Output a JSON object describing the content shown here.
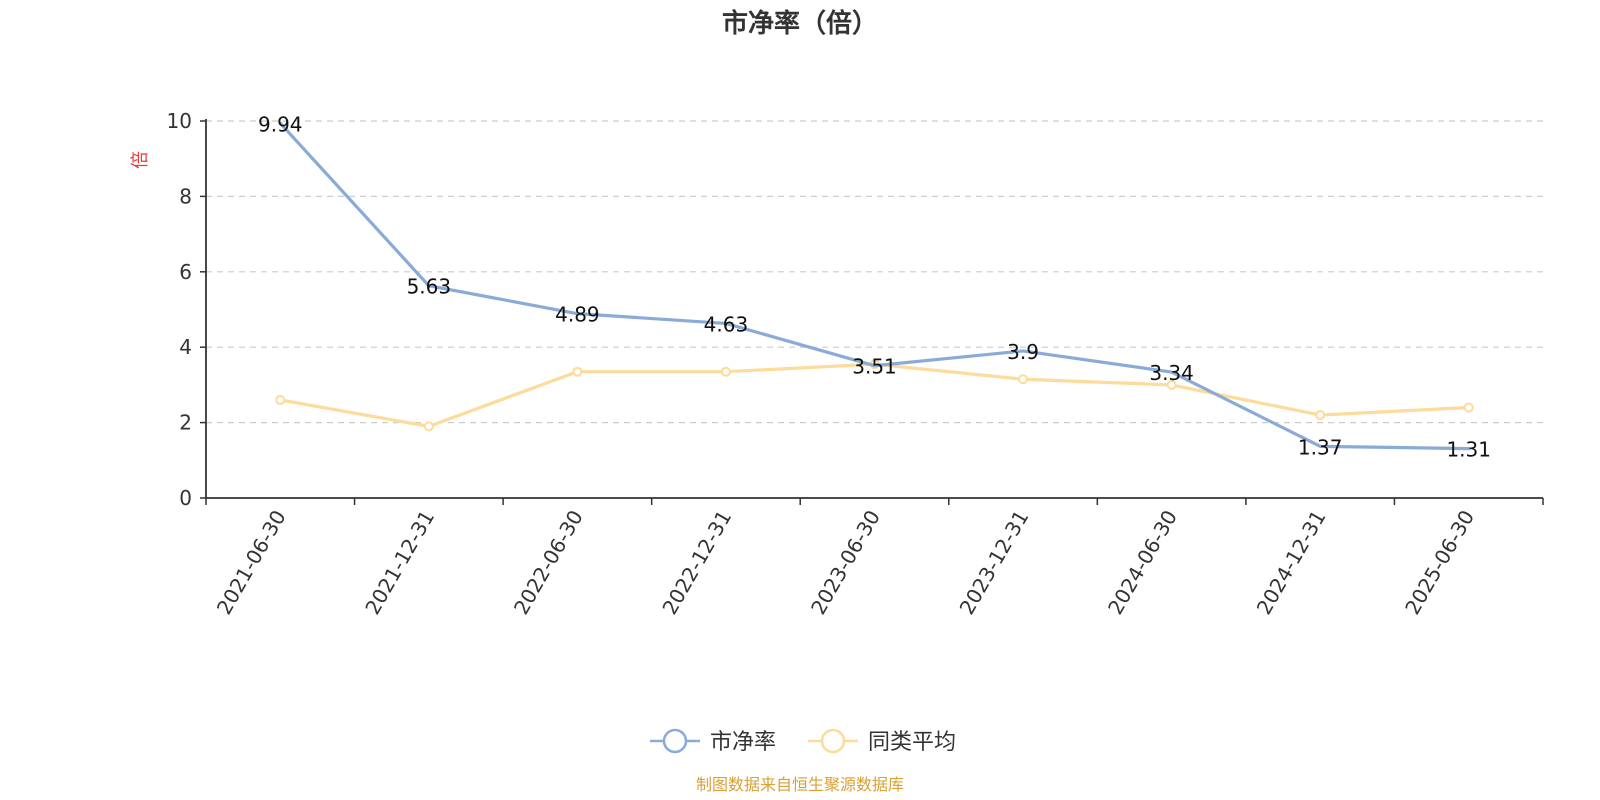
{
  "chart_data": {
    "type": "line",
    "title": "市净率（倍）",
    "ylabel": "倍",
    "xlabel": "",
    "categories": [
      "2021-06-30",
      "2021-12-31",
      "2022-06-30",
      "2022-12-31",
      "2023-06-30",
      "2023-12-31",
      "2024-06-30",
      "2024-12-31",
      "2025-06-30"
    ],
    "ylim": [
      0,
      10
    ],
    "yticks": [
      0,
      2,
      4,
      6,
      8,
      10
    ],
    "grid": true,
    "legend_position": "bottom-center",
    "series": [
      {
        "name": "市净率",
        "color": "#8aaad8",
        "values": [
          9.94,
          5.63,
          4.89,
          4.63,
          3.51,
          3.9,
          3.34,
          1.37,
          1.31
        ],
        "labels": [
          "9.94",
          "5.63",
          "4.89",
          "4.63",
          "3.51",
          "3.9",
          "3.34",
          "1.37",
          "1.31"
        ]
      },
      {
        "name": "同类平均",
        "color": "#fddb9a",
        "values": [
          2.6,
          1.9,
          3.35,
          3.35,
          3.55,
          3.15,
          3.0,
          2.2,
          2.4
        ]
      }
    ]
  },
  "colors": {
    "ylabel": "#e83b3b",
    "source": "#d9a035",
    "grid": "#cccccc",
    "axis": "#333333"
  },
  "footer": {
    "source": "制图数据来自恒生聚源数据库"
  }
}
